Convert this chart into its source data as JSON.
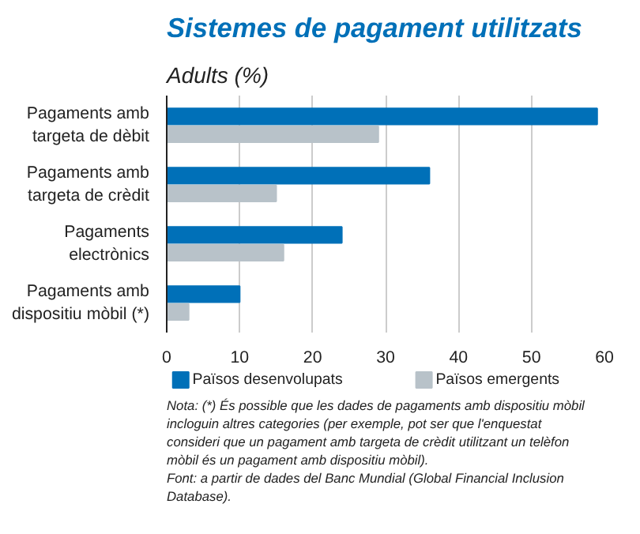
{
  "chart_data": {
    "type": "bar",
    "orientation": "horizontal",
    "title": "Sistemes de pagament utilitzats",
    "subtitle": "Adults (%)",
    "categories": [
      "Pagaments amb targeta de dèbit",
      "Pagaments amb targeta de crèdit",
      "Pagaments electrònics",
      "Pagaments amb dispositiu mòbil (*)"
    ],
    "series": [
      {
        "name": "Països desenvolupats",
        "color": "#0070b8",
        "values": [
          59,
          36,
          24,
          10
        ]
      },
      {
        "name": "Països emergents",
        "color": "#b8c2c9",
        "values": [
          29,
          15,
          16,
          3
        ]
      }
    ],
    "xlim": [
      0,
      60
    ],
    "xticks": [
      0,
      10,
      20,
      30,
      40,
      50,
      60
    ],
    "grid": "x",
    "legend": "bottom",
    "annotations": [
      "Nota: (*) És possible que les dades de pagaments amb dispositiu mòbil incloguin altres categories (per exemple, pot ser que l'enquestat consideri que un pagament amb targeta de crèdit utilitzant un telèfon mòbil és un pagament amb dispositiu mòbil).",
      "Font: a partir de dades del Banc Mundial (Global Financial Inclusion Database)."
    ]
  }
}
